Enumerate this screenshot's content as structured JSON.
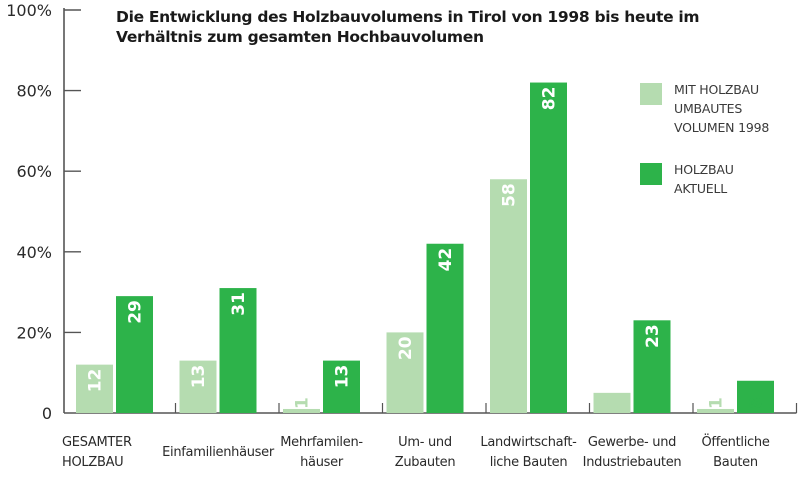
{
  "chart_data": {
    "type": "bar",
    "title": "Die Entwicklung des Holzbauvolumens in Tirol von 1998 bis heute im Verhältnis zum gesamten Hochbauvolumen",
    "xlabel": "",
    "ylabel": "",
    "ylim": [
      0,
      100
    ],
    "yticks": [
      0,
      20,
      40,
      60,
      80,
      100
    ],
    "ytick_labels": [
      "0",
      "20%",
      "40%",
      "60%",
      "80%",
      "100%"
    ],
    "categories": [
      "GESAMTER\nHOLZBAU",
      "Einfamilienhäuser",
      "Mehrfamilen-\nhäuser",
      "Um- und\nZubauten",
      "Landwirtschaft-\nliche Bauten",
      "Gewerbe- und\nIndustriebauten",
      "Öffentliche\nBauten"
    ],
    "series": [
      {
        "name": "MIT HOLZBAU UMBAUTES VOLUMEN 1998",
        "legend_lines": [
          "MIT HOLZBAU",
          "UMBAUTES",
          "VOLUMEN 1998"
        ],
        "color": "#b5dcb0",
        "label_color": "#ffffff",
        "values": [
          12,
          13,
          1,
          20,
          58,
          5,
          1
        ]
      },
      {
        "name": "HOLZBAU AKTUELL",
        "legend_lines": [
          "HOLZBAU",
          "AKTUELL"
        ],
        "color": "#2db34a",
        "label_color": "#ffffff",
        "values": [
          29,
          31,
          13,
          42,
          82,
          23,
          8
        ]
      }
    ],
    "grid": false,
    "legend_position": "right",
    "data_labels": "rotated inside bars"
  }
}
